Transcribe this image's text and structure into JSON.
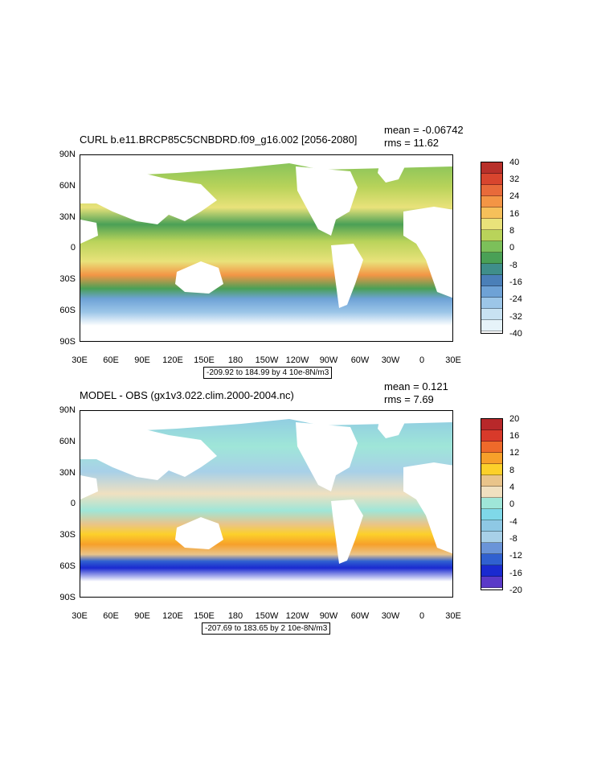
{
  "panels": [
    {
      "title": "CURL b.e11.BRCP85C5CNBDRD.f09_g16.002 [2056-2080]",
      "mean": "mean = -0.06742",
      "rms": "rms = 11.62",
      "range": "-209.92 to 184.99 by 4 10e-8N/m3",
      "y_ticks": [
        "90N",
        "60N",
        "30N",
        "0",
        "30S",
        "60S",
        "90S"
      ],
      "x_ticks": [
        "30E",
        "60E",
        "90E",
        "120E",
        "150E",
        "180",
        "150W",
        "120W",
        "90W",
        "60W",
        "30W",
        "0",
        "30E"
      ],
      "colorbar_labels": [
        "40",
        "32",
        "24",
        "16",
        "8",
        "0",
        "-8",
        "-16",
        "-24",
        "-32",
        "-40"
      ],
      "colorbar_colors": [
        "#b8302a",
        "#d8452e",
        "#e86a3a",
        "#f39545",
        "#f6c05a",
        "#e9e27a",
        "#b9d35a",
        "#7cc05a",
        "#4aa056",
        "#3f8e8a",
        "#4a7fb8",
        "#6ea2d6",
        "#9cc6e8",
        "#c8e2f2",
        "#e6f3f9"
      ]
    },
    {
      "title": "MODEL - OBS (gx1v3.022.clim.2000-2004.nc)",
      "mean": "mean = 0.121",
      "rms": "rms = 7.69",
      "range": "-207.69 to 183.65 by 2 10e-8N/m3",
      "y_ticks": [
        "90N",
        "60N",
        "30N",
        "0",
        "30S",
        "60S",
        "90S"
      ],
      "x_ticks": [
        "30E",
        "60E",
        "90E",
        "120E",
        "150E",
        "180",
        "150W",
        "120W",
        "90W",
        "60W",
        "30W",
        "0",
        "30E"
      ],
      "colorbar_labels": [
        "20",
        "16",
        "12",
        "8",
        "4",
        "0",
        "-4",
        "-8",
        "-12",
        "-16",
        "-20"
      ],
      "colorbar_colors": [
        "#b8282a",
        "#d83a2a",
        "#ee6a2a",
        "#f7a02a",
        "#fcd02a",
        "#e9c48a",
        "#f0e0c0",
        "#9fe6d8",
        "#7fd8e8",
        "#8ec8e4",
        "#a8d0e8",
        "#6a94d8",
        "#3060d0",
        "#1a2ad0",
        "#5a3ac8"
      ]
    }
  ]
}
